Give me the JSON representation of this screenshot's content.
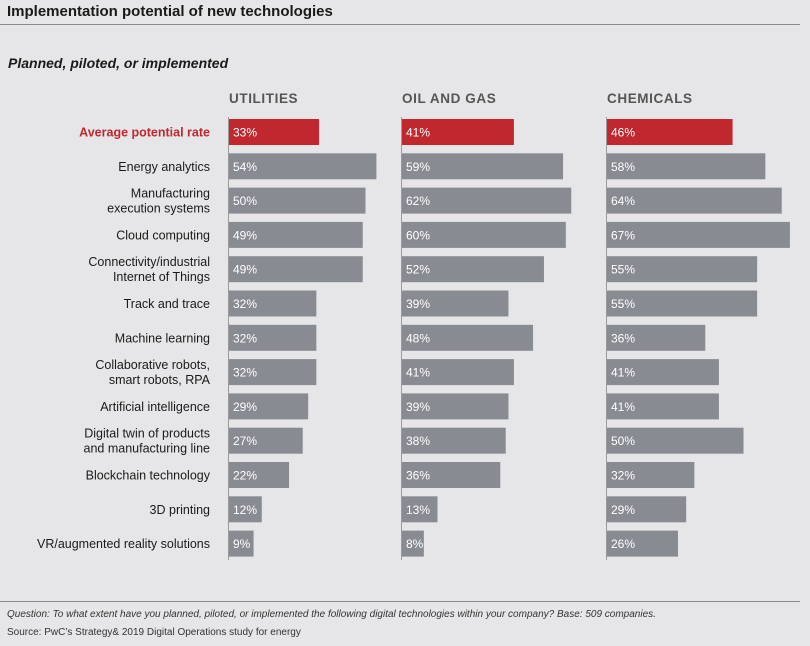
{
  "title": "Implementation potential of new technologies",
  "subtitle": "Planned, piloted, or implemented",
  "footnote_question": "Question: To what extent have you planned, piloted, or implemented the following digital technologies within your company? Base: 509 companies.",
  "footnote_source": "Source: PwC’s Strategy& 2019 Digital Operations study for energy",
  "colors": {
    "highlight": "#c0282e",
    "bar": "#888c92",
    "bar_text": "#ffffff",
    "highlight_label": "#c0282e"
  },
  "chart_data": {
    "type": "bar",
    "orientation": "horizontal",
    "panels": [
      "UTILITIES",
      "OIL AND GAS",
      "CHEMICALS"
    ],
    "categories": [
      "Average potential rate",
      "Energy analytics",
      "Manufacturing\nexecution systems",
      "Cloud computing",
      "Connectivity/industrial\nInternet of Things",
      "Track and trace",
      "Machine learning",
      "Collaborative robots,\nsmart robots, RPA",
      "Artificial intelligence",
      "Digital twin of products\nand manufacturing line",
      "Blockchain technology",
      "3D printing",
      "VR/augmented reality solutions"
    ],
    "highlight_category": "Average potential rate",
    "series": [
      {
        "name": "UTILITIES",
        "values": [
          33,
          54,
          50,
          49,
          49,
          32,
          32,
          32,
          29,
          27,
          22,
          12,
          9
        ]
      },
      {
        "name": "OIL AND GAS",
        "values": [
          41,
          59,
          62,
          60,
          52,
          39,
          48,
          41,
          39,
          38,
          36,
          13,
          8
        ]
      },
      {
        "name": "CHEMICALS",
        "values": [
          46,
          58,
          64,
          67,
          55,
          55,
          36,
          41,
          41,
          50,
          32,
          29,
          26
        ]
      }
    ],
    "unit": "%"
  }
}
